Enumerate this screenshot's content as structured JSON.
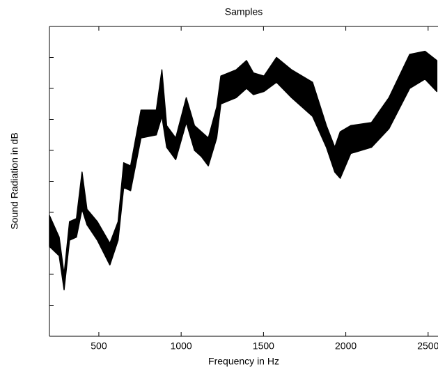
{
  "chart_data": {
    "type": "band",
    "title": "Samples",
    "x_label": "Frequency in Hz",
    "y_label": "Sound Radiation in dB",
    "color": "#000000",
    "x": [
      200,
      259,
      289,
      322,
      364,
      398,
      428,
      491,
      567,
      617,
      651,
      693,
      756,
      849,
      883,
      912,
      967,
      1031,
      1081,
      1123,
      1165,
      1216,
      1241,
      1334,
      1397,
      1439,
      1503,
      1579,
      1671,
      1798,
      1882,
      1933,
      1966,
      2030,
      2156,
      2262,
      2388,
      2481,
      2553
    ],
    "upper": [
      3.9,
      3.2,
      2.0,
      3.7,
      3.8,
      5.3,
      4.1,
      3.7,
      3.0,
      3.7,
      5.6,
      5.5,
      7.3,
      7.3,
      8.6,
      6.8,
      6.4,
      7.7,
      6.8,
      6.6,
      6.4,
      7.4,
      8.4,
      8.6,
      8.9,
      8.5,
      8.4,
      9.0,
      8.6,
      8.2,
      6.8,
      6.1,
      6.6,
      6.8,
      6.9,
      7.7,
      9.1,
      9.2,
      8.9
    ],
    "lower": [
      2.9,
      2.6,
      1.5,
      3.1,
      3.2,
      4.1,
      3.6,
      3.1,
      2.3,
      3.1,
      4.8,
      4.7,
      6.4,
      6.5,
      7.1,
      6.1,
      5.7,
      6.9,
      6.0,
      5.8,
      5.5,
      6.4,
      7.5,
      7.7,
      8.0,
      7.8,
      7.9,
      8.2,
      7.7,
      7.1,
      6.1,
      5.3,
      5.1,
      5.9,
      6.1,
      6.7,
      8.0,
      8.3,
      7.9
    ],
    "xlim": [
      200,
      2560
    ],
    "xticks": [
      500,
      1000,
      1500,
      2000,
      2500
    ],
    "ylim": [
      0,
      10
    ],
    "yticks": [
      1,
      2,
      3,
      4,
      5,
      6,
      7,
      8,
      9
    ]
  }
}
